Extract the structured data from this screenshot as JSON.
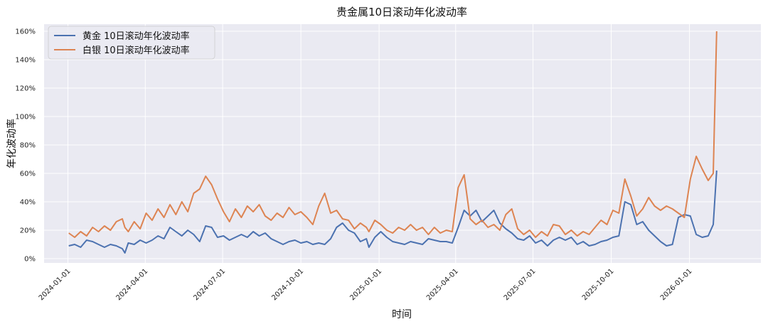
{
  "chart_data": {
    "type": "line",
    "title": "贵金属10日滚动年化波动率",
    "xlabel": "时间",
    "ylabel": "年化波动率",
    "xlim": [
      "2023-12-04",
      "2026-03-26"
    ],
    "ylim": [
      -3,
      165
    ],
    "grid": true,
    "legend": "top-left",
    "x_ticks": [
      "2024-01-01",
      "2024-04-01",
      "2024-07-01",
      "2024-10-01",
      "2025-01-01",
      "2025-04-01",
      "2025-07-01",
      "2025-10-01",
      "2026-01-01"
    ],
    "y_ticks": [
      0,
      20,
      40,
      60,
      80,
      100,
      120,
      140,
      160
    ],
    "y_tick_labels": [
      "0%",
      "20%",
      "40%",
      "60%",
      "80%",
      "100%",
      "120%",
      "140%",
      "160%"
    ],
    "colors": {
      "plot_bg": "#eaeaf2",
      "grid": "#ffffff",
      "gold": "#4c72b0",
      "silver": "#dd8452"
    },
    "series": [
      {
        "name": "黄金 10日滚动年化波动率",
        "color": "#4c72b0",
        "points": [
          [
            "2024-01-02",
            9
          ],
          [
            "2024-01-09",
            10
          ],
          [
            "2024-01-16",
            8
          ],
          [
            "2024-01-23",
            13
          ],
          [
            "2024-01-30",
            12
          ],
          [
            "2024-02-06",
            10
          ],
          [
            "2024-02-13",
            8
          ],
          [
            "2024-02-20",
            10
          ],
          [
            "2024-02-27",
            9
          ],
          [
            "2024-03-05",
            7
          ],
          [
            "2024-03-08",
            4
          ],
          [
            "2024-03-12",
            11
          ],
          [
            "2024-03-19",
            10
          ],
          [
            "2024-03-26",
            13
          ],
          [
            "2024-04-02",
            11
          ],
          [
            "2024-04-09",
            13
          ],
          [
            "2024-04-16",
            16
          ],
          [
            "2024-04-23",
            14
          ],
          [
            "2024-04-30",
            22
          ],
          [
            "2024-05-07",
            19
          ],
          [
            "2024-05-14",
            16
          ],
          [
            "2024-05-21",
            20
          ],
          [
            "2024-05-28",
            17
          ],
          [
            "2024-06-04",
            12
          ],
          [
            "2024-06-11",
            23
          ],
          [
            "2024-06-18",
            22
          ],
          [
            "2024-06-25",
            15
          ],
          [
            "2024-07-02",
            16
          ],
          [
            "2024-07-09",
            13
          ],
          [
            "2024-07-16",
            15
          ],
          [
            "2024-07-23",
            17
          ],
          [
            "2024-07-30",
            15
          ],
          [
            "2024-08-06",
            19
          ],
          [
            "2024-08-13",
            16
          ],
          [
            "2024-08-20",
            18
          ],
          [
            "2024-08-27",
            14
          ],
          [
            "2024-09-03",
            12
          ],
          [
            "2024-09-10",
            10
          ],
          [
            "2024-09-17",
            12
          ],
          [
            "2024-09-24",
            13
          ],
          [
            "2024-10-01",
            11
          ],
          [
            "2024-10-08",
            12
          ],
          [
            "2024-10-15",
            10
          ],
          [
            "2024-10-22",
            11
          ],
          [
            "2024-10-29",
            10
          ],
          [
            "2024-11-05",
            14
          ],
          [
            "2024-11-12",
            22
          ],
          [
            "2024-11-19",
            25
          ],
          [
            "2024-11-26",
            20
          ],
          [
            "2024-12-03",
            18
          ],
          [
            "2024-12-10",
            12
          ],
          [
            "2024-12-17",
            14
          ],
          [
            "2024-12-20",
            8
          ],
          [
            "2024-12-27",
            15
          ],
          [
            "2025-01-03",
            19
          ],
          [
            "2025-01-10",
            15
          ],
          [
            "2025-01-17",
            12
          ],
          [
            "2025-01-24",
            11
          ],
          [
            "2025-01-31",
            10
          ],
          [
            "2025-02-07",
            12
          ],
          [
            "2025-02-14",
            11
          ],
          [
            "2025-02-21",
            10
          ],
          [
            "2025-02-28",
            14
          ],
          [
            "2025-03-07",
            13
          ],
          [
            "2025-03-14",
            12
          ],
          [
            "2025-03-21",
            12
          ],
          [
            "2025-03-28",
            11
          ],
          [
            "2025-04-04",
            22
          ],
          [
            "2025-04-11",
            34
          ],
          [
            "2025-04-18",
            30
          ],
          [
            "2025-04-25",
            34
          ],
          [
            "2025-05-02",
            26
          ],
          [
            "2025-05-09",
            30
          ],
          [
            "2025-05-16",
            34
          ],
          [
            "2025-05-23",
            25
          ],
          [
            "2025-05-30",
            21
          ],
          [
            "2025-06-06",
            18
          ],
          [
            "2025-06-13",
            14
          ],
          [
            "2025-06-20",
            13
          ],
          [
            "2025-06-27",
            16
          ],
          [
            "2025-07-04",
            11
          ],
          [
            "2025-07-11",
            13
          ],
          [
            "2025-07-18",
            9
          ],
          [
            "2025-07-25",
            13
          ],
          [
            "2025-08-01",
            15
          ],
          [
            "2025-08-08",
            13
          ],
          [
            "2025-08-15",
            15
          ],
          [
            "2025-08-22",
            10
          ],
          [
            "2025-08-29",
            12
          ],
          [
            "2025-09-05",
            9
          ],
          [
            "2025-09-12",
            10
          ],
          [
            "2025-09-19",
            12
          ],
          [
            "2025-09-26",
            13
          ],
          [
            "2025-10-03",
            15
          ],
          [
            "2025-10-10",
            16
          ],
          [
            "2025-10-17",
            40
          ],
          [
            "2025-10-24",
            38
          ],
          [
            "2025-10-31",
            24
          ],
          [
            "2025-11-07",
            26
          ],
          [
            "2025-11-14",
            20
          ],
          [
            "2025-11-21",
            16
          ],
          [
            "2025-11-28",
            12
          ],
          [
            "2025-12-05",
            9
          ],
          [
            "2025-12-12",
            10
          ],
          [
            "2025-12-19",
            29
          ],
          [
            "2025-12-26",
            31
          ],
          [
            "2026-01-02",
            30
          ],
          [
            "2026-01-09",
            17
          ],
          [
            "2026-01-16",
            15
          ],
          [
            "2026-01-23",
            16
          ],
          [
            "2026-01-29",
            24
          ],
          [
            "2026-02-02",
            62
          ]
        ]
      },
      {
        "name": "白银 10日滚动年化波动率",
        "color": "#dd8452",
        "points": [
          [
            "2024-01-02",
            18
          ],
          [
            "2024-01-09",
            15
          ],
          [
            "2024-01-16",
            19
          ],
          [
            "2024-01-23",
            16
          ],
          [
            "2024-01-30",
            22
          ],
          [
            "2024-02-06",
            19
          ],
          [
            "2024-02-13",
            23
          ],
          [
            "2024-02-20",
            20
          ],
          [
            "2024-02-27",
            26
          ],
          [
            "2024-03-05",
            28
          ],
          [
            "2024-03-08",
            22
          ],
          [
            "2024-03-12",
            19
          ],
          [
            "2024-03-19",
            26
          ],
          [
            "2024-03-26",
            21
          ],
          [
            "2024-04-02",
            32
          ],
          [
            "2024-04-09",
            27
          ],
          [
            "2024-04-16",
            35
          ],
          [
            "2024-04-23",
            29
          ],
          [
            "2024-04-30",
            38
          ],
          [
            "2024-05-07",
            31
          ],
          [
            "2024-05-14",
            40
          ],
          [
            "2024-05-21",
            33
          ],
          [
            "2024-05-28",
            46
          ],
          [
            "2024-06-04",
            49
          ],
          [
            "2024-06-11",
            58
          ],
          [
            "2024-06-18",
            52
          ],
          [
            "2024-06-25",
            42
          ],
          [
            "2024-07-02",
            33
          ],
          [
            "2024-07-09",
            26
          ],
          [
            "2024-07-16",
            35
          ],
          [
            "2024-07-23",
            29
          ],
          [
            "2024-07-30",
            37
          ],
          [
            "2024-08-06",
            33
          ],
          [
            "2024-08-13",
            38
          ],
          [
            "2024-08-20",
            30
          ],
          [
            "2024-08-27",
            27
          ],
          [
            "2024-09-03",
            32
          ],
          [
            "2024-09-10",
            29
          ],
          [
            "2024-09-17",
            36
          ],
          [
            "2024-09-24",
            31
          ],
          [
            "2024-10-01",
            33
          ],
          [
            "2024-10-08",
            29
          ],
          [
            "2024-10-15",
            24
          ],
          [
            "2024-10-22",
            37
          ],
          [
            "2024-10-29",
            46
          ],
          [
            "2024-11-05",
            32
          ],
          [
            "2024-11-12",
            34
          ],
          [
            "2024-11-19",
            28
          ],
          [
            "2024-11-26",
            27
          ],
          [
            "2024-12-03",
            21
          ],
          [
            "2024-12-10",
            25
          ],
          [
            "2024-12-17",
            22
          ],
          [
            "2024-12-20",
            19
          ],
          [
            "2024-12-27",
            27
          ],
          [
            "2025-01-03",
            24
          ],
          [
            "2025-01-10",
            20
          ],
          [
            "2025-01-17",
            18
          ],
          [
            "2025-01-24",
            22
          ],
          [
            "2025-01-31",
            20
          ],
          [
            "2025-02-07",
            24
          ],
          [
            "2025-02-14",
            20
          ],
          [
            "2025-02-21",
            22
          ],
          [
            "2025-02-28",
            17
          ],
          [
            "2025-03-07",
            22
          ],
          [
            "2025-03-14",
            18
          ],
          [
            "2025-03-21",
            20
          ],
          [
            "2025-03-28",
            19
          ],
          [
            "2025-04-04",
            50
          ],
          [
            "2025-04-11",
            59
          ],
          [
            "2025-04-18",
            28
          ],
          [
            "2025-04-25",
            24
          ],
          [
            "2025-05-02",
            27
          ],
          [
            "2025-05-09",
            22
          ],
          [
            "2025-05-16",
            24
          ],
          [
            "2025-05-23",
            20
          ],
          [
            "2025-05-30",
            31
          ],
          [
            "2025-06-06",
            35
          ],
          [
            "2025-06-13",
            21
          ],
          [
            "2025-06-20",
            17
          ],
          [
            "2025-06-27",
            20
          ],
          [
            "2025-07-04",
            15
          ],
          [
            "2025-07-11",
            19
          ],
          [
            "2025-07-18",
            16
          ],
          [
            "2025-07-25",
            24
          ],
          [
            "2025-08-01",
            23
          ],
          [
            "2025-08-08",
            17
          ],
          [
            "2025-08-15",
            20
          ],
          [
            "2025-08-22",
            16
          ],
          [
            "2025-08-29",
            19
          ],
          [
            "2025-09-05",
            17
          ],
          [
            "2025-09-12",
            22
          ],
          [
            "2025-09-19",
            27
          ],
          [
            "2025-09-26",
            24
          ],
          [
            "2025-10-03",
            34
          ],
          [
            "2025-10-10",
            32
          ],
          [
            "2025-10-17",
            56
          ],
          [
            "2025-10-24",
            44
          ],
          [
            "2025-10-31",
            30
          ],
          [
            "2025-11-07",
            35
          ],
          [
            "2025-11-14",
            43
          ],
          [
            "2025-11-21",
            37
          ],
          [
            "2025-11-28",
            34
          ],
          [
            "2025-12-05",
            37
          ],
          [
            "2025-12-12",
            35
          ],
          [
            "2025-12-19",
            32
          ],
          [
            "2025-12-26",
            29
          ],
          [
            "2026-01-02",
            56
          ],
          [
            "2026-01-09",
            72
          ],
          [
            "2026-01-16",
            63
          ],
          [
            "2026-01-23",
            55
          ],
          [
            "2026-01-29",
            60
          ],
          [
            "2026-02-02",
            160
          ]
        ]
      }
    ]
  }
}
